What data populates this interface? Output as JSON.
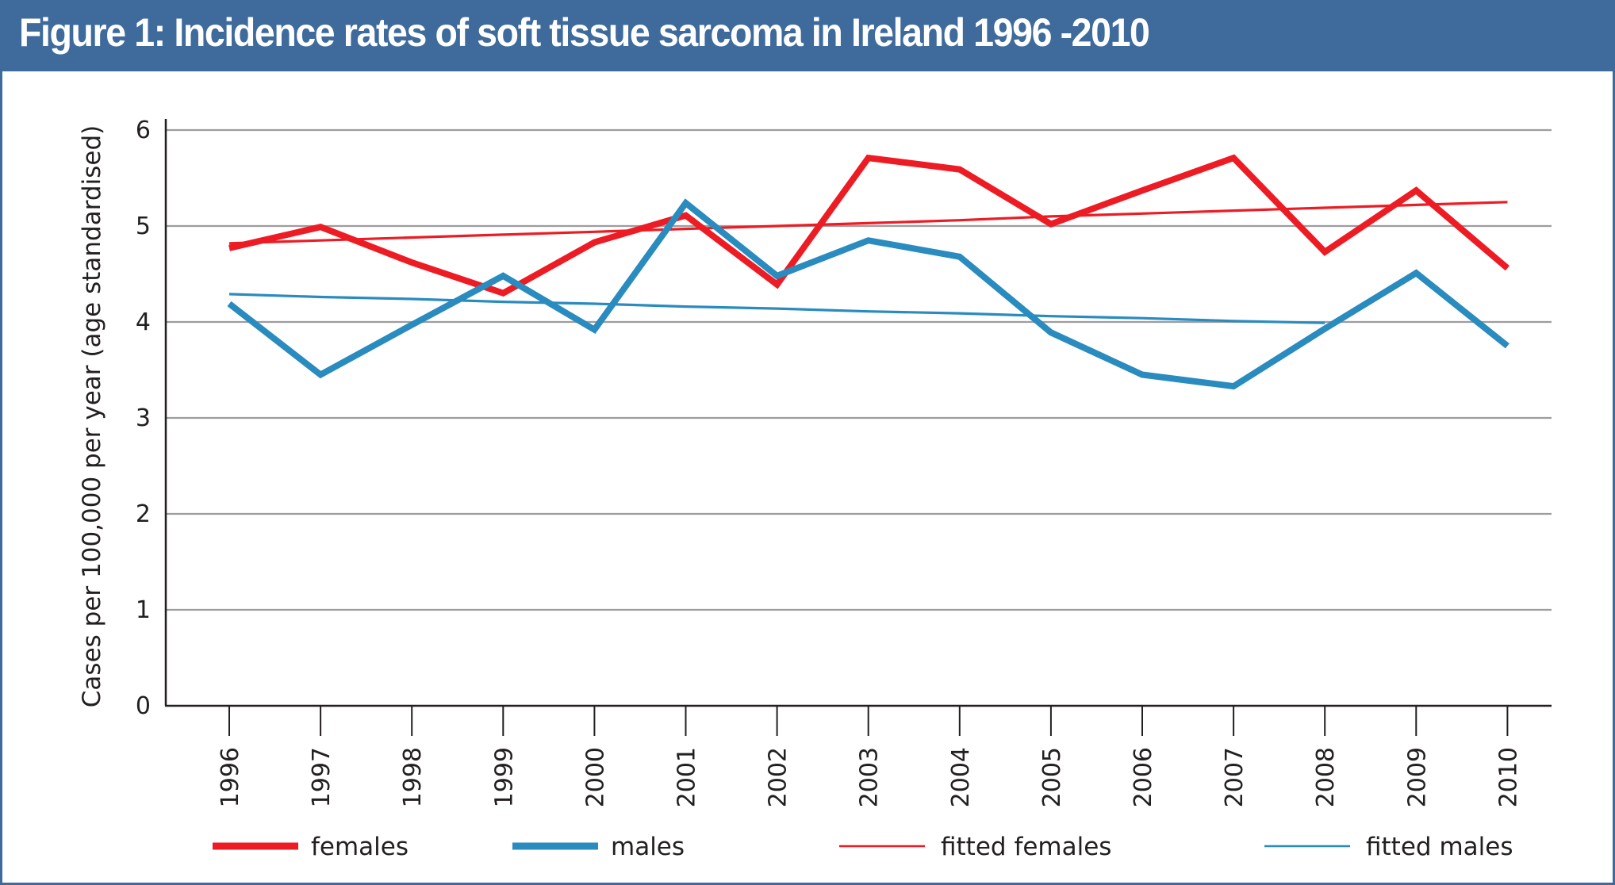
{
  "header": {
    "title": "Figure 1: Incidence rates of soft tissue sarcoma in Ireland 1996 -2010"
  },
  "colors": {
    "header_bg": "#3e6a9c",
    "females": "#ed1c24",
    "males": "#2a8bbf",
    "grid": "#9d9d9f",
    "axis": "#231f20"
  },
  "chart_data": {
    "type": "line",
    "title": "Figure 1: Incidence rates of soft tissue sarcoma in Ireland 1996 -2010",
    "xlabel": "",
    "ylabel": "Cases per 100,000 per year (age standardised)",
    "ylim": [
      0,
      6
    ],
    "yticks": [
      "0",
      "1",
      "2",
      "3",
      "4",
      "5",
      "6"
    ],
    "grid": true,
    "legend_position": "bottom",
    "categories": [
      "1996",
      "1997",
      "1998",
      "1999",
      "2000",
      "2001",
      "2002",
      "2003",
      "2004",
      "2005",
      "2006",
      "2007",
      "2008",
      "2009",
      "2010"
    ],
    "series": [
      {
        "name": "females",
        "style": "thick",
        "color": "#ed1c24",
        "values": [
          4.77,
          4.99,
          4.62,
          4.3,
          4.83,
          5.11,
          4.39,
          5.71,
          5.59,
          5.02,
          5.37,
          5.71,
          4.73,
          5.37,
          4.56
        ]
      },
      {
        "name": "males",
        "style": "thick",
        "color": "#2a8bbf",
        "values": [
          4.19,
          3.45,
          3.97,
          4.48,
          3.92,
          5.24,
          4.48,
          4.85,
          4.68,
          3.89,
          3.45,
          3.33,
          3.93,
          4.51,
          3.75
        ]
      },
      {
        "name": "fitted females",
        "style": "thin",
        "color": "#ed1c24",
        "values": [
          4.82,
          4.85,
          4.88,
          4.91,
          4.94,
          4.97,
          5.0,
          5.03,
          5.06,
          5.1,
          5.13,
          5.16,
          5.19,
          5.22,
          5.25
        ]
      },
      {
        "name": "fitted males",
        "style": "thin",
        "color": "#2a8bbf",
        "x_range": [
          "1996",
          "2008"
        ],
        "values": [
          4.29,
          4.26,
          4.24,
          4.21,
          4.19,
          4.16,
          4.14,
          4.11,
          4.09,
          4.06,
          4.04,
          4.01,
          3.99
        ]
      }
    ]
  },
  "legend": {
    "items": [
      {
        "label": "females",
        "color": "#ed1c24",
        "style": "thick"
      },
      {
        "label": "males",
        "color": "#2a8bbf",
        "style": "thick"
      },
      {
        "label": "fitted females",
        "color": "#ed1c24",
        "style": "thin"
      },
      {
        "label": "fitted males",
        "color": "#2a8bbf",
        "style": "thin"
      }
    ]
  }
}
